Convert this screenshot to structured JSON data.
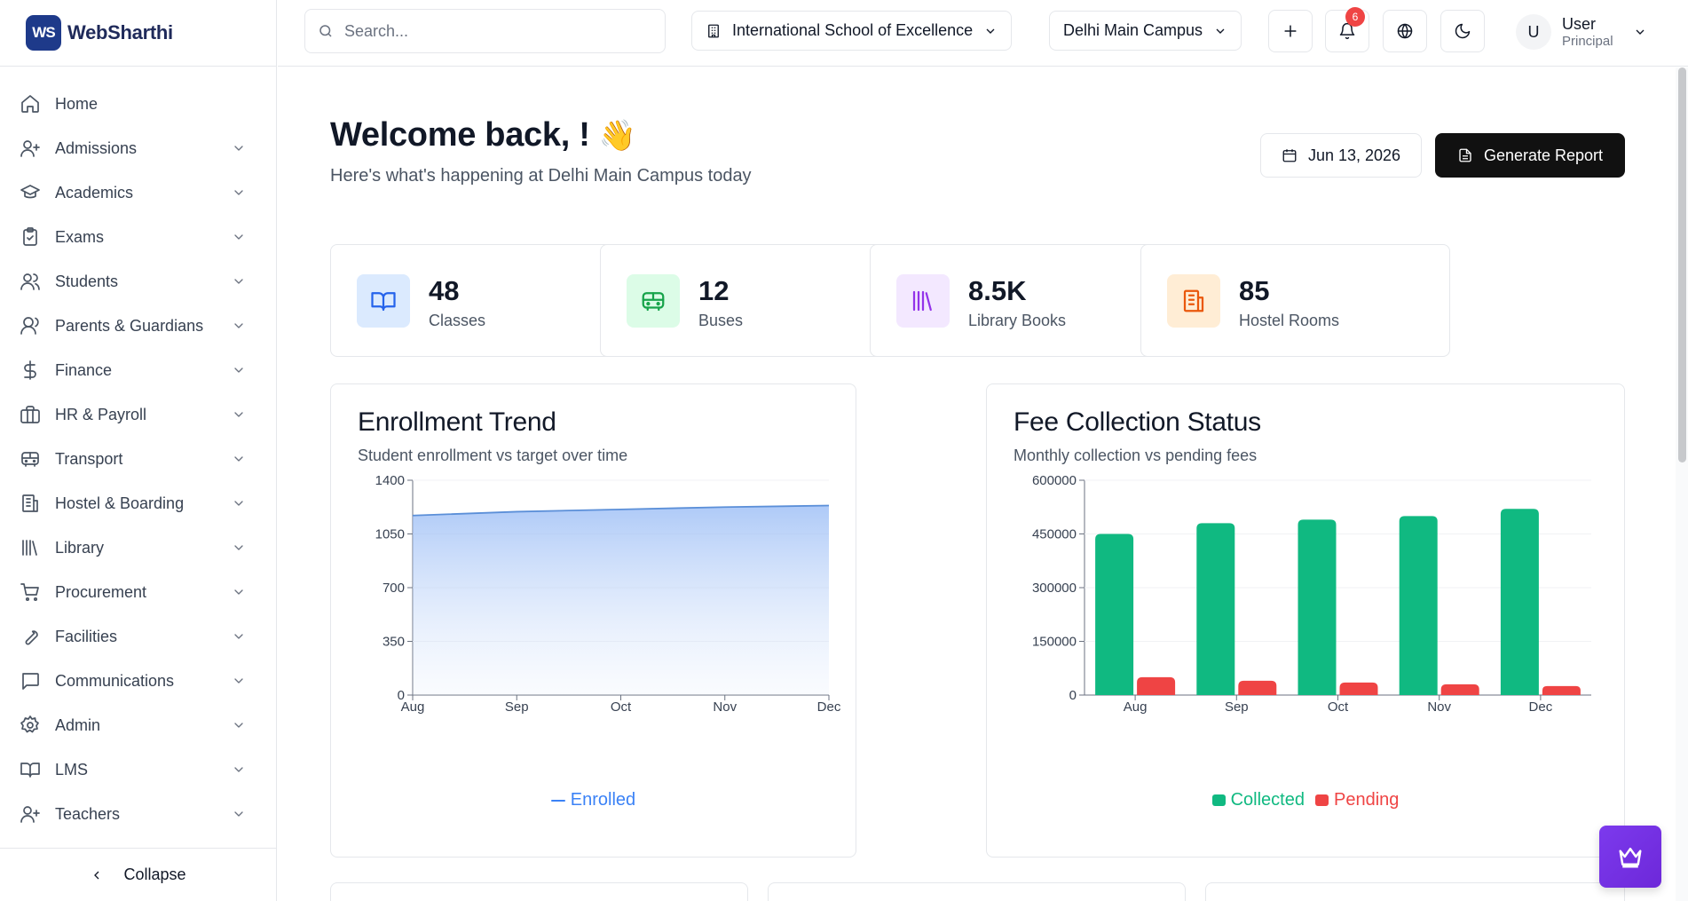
{
  "brand": {
    "logo_mark": "WS",
    "name": "WebSharthi"
  },
  "sidebar": {
    "items": [
      {
        "label": "Home",
        "icon": "home-icon",
        "expandable": false
      },
      {
        "label": "Admissions",
        "icon": "user-plus-icon",
        "expandable": true
      },
      {
        "label": "Academics",
        "icon": "graduation-cap-icon",
        "expandable": true
      },
      {
        "label": "Exams",
        "icon": "clipboard-check-icon",
        "expandable": true
      },
      {
        "label": "Students",
        "icon": "users-icon",
        "expandable": true
      },
      {
        "label": "Parents & Guardians",
        "icon": "user-group-icon",
        "expandable": true
      },
      {
        "label": "Finance",
        "icon": "dollar-icon",
        "expandable": true
      },
      {
        "label": "HR & Payroll",
        "icon": "briefcase-icon",
        "expandable": true
      },
      {
        "label": "Transport",
        "icon": "bus-icon",
        "expandable": true
      },
      {
        "label": "Hostel & Boarding",
        "icon": "building-icon",
        "expandable": true
      },
      {
        "label": "Library",
        "icon": "library-icon",
        "expandable": true
      },
      {
        "label": "Procurement",
        "icon": "cart-icon",
        "expandable": true
      },
      {
        "label": "Facilities",
        "icon": "wrench-icon",
        "expandable": true
      },
      {
        "label": "Communications",
        "icon": "message-icon",
        "expandable": true
      },
      {
        "label": "Admin",
        "icon": "gear-icon",
        "expandable": true
      },
      {
        "label": "LMS",
        "icon": "book-open-icon",
        "expandable": true
      },
      {
        "label": "Teachers",
        "icon": "user-plus-icon",
        "expandable": true
      }
    ],
    "collapse_label": "Collapse"
  },
  "header": {
    "search_placeholder": "Search...",
    "school": "International School of Excellence",
    "campus": "Delhi Main Campus",
    "notification_count": "6",
    "user": {
      "initial": "U",
      "name": "User",
      "role": "Principal"
    }
  },
  "welcome": {
    "title": "Welcome back, !",
    "emoji": "👋",
    "subtitle": "Here's what's happening at Delhi Main Campus today",
    "date": "Jun 13, 2026",
    "report_label": "Generate Report"
  },
  "stats": [
    {
      "value": "48",
      "label": "Classes",
      "icon": "book-open-icon",
      "bg": "#dbeafe",
      "color": "#2563eb"
    },
    {
      "value": "12",
      "label": "Buses",
      "icon": "bus-icon",
      "bg": "#dcfce7",
      "color": "#16a34a"
    },
    {
      "value": "8.5K",
      "label": "Library Books",
      "icon": "library-icon",
      "bg": "#f3e8ff",
      "color": "#9333ea"
    },
    {
      "value": "85",
      "label": "Hostel Rooms",
      "icon": "building-icon",
      "bg": "#ffedd5",
      "color": "#ea580c"
    }
  ],
  "charts": {
    "enrollment": {
      "title": "Enrollment Trend",
      "subtitle": "Student enrollment vs target over time"
    },
    "fees": {
      "title": "Fee Collection Status",
      "subtitle": "Monthly collection vs pending fees"
    }
  },
  "chart_data": [
    {
      "type": "area",
      "categories": [
        "Aug",
        "Sep",
        "Oct",
        "Nov",
        "Dec"
      ],
      "series": [
        {
          "name": "Enrolled",
          "values": [
            1170,
            1195,
            1210,
            1225,
            1235
          ],
          "color": "#3b82f6"
        }
      ],
      "yticks": [
        0,
        350,
        700,
        1050,
        1400
      ],
      "ylim": [
        0,
        1400
      ],
      "legend": "bottom"
    },
    {
      "type": "bar",
      "categories": [
        "Aug",
        "Sep",
        "Oct",
        "Nov",
        "Dec"
      ],
      "series": [
        {
          "name": "Collected",
          "values": [
            450000,
            480000,
            490000,
            500000,
            520000
          ],
          "color": "#10b981"
        },
        {
          "name": "Pending",
          "values": [
            50000,
            40000,
            35000,
            30000,
            25000
          ],
          "color": "#ef4444"
        }
      ],
      "yticks": [
        0,
        150000,
        300000,
        450000,
        600000
      ],
      "ylim": [
        0,
        600000
      ],
      "legend": "bottom"
    }
  ]
}
